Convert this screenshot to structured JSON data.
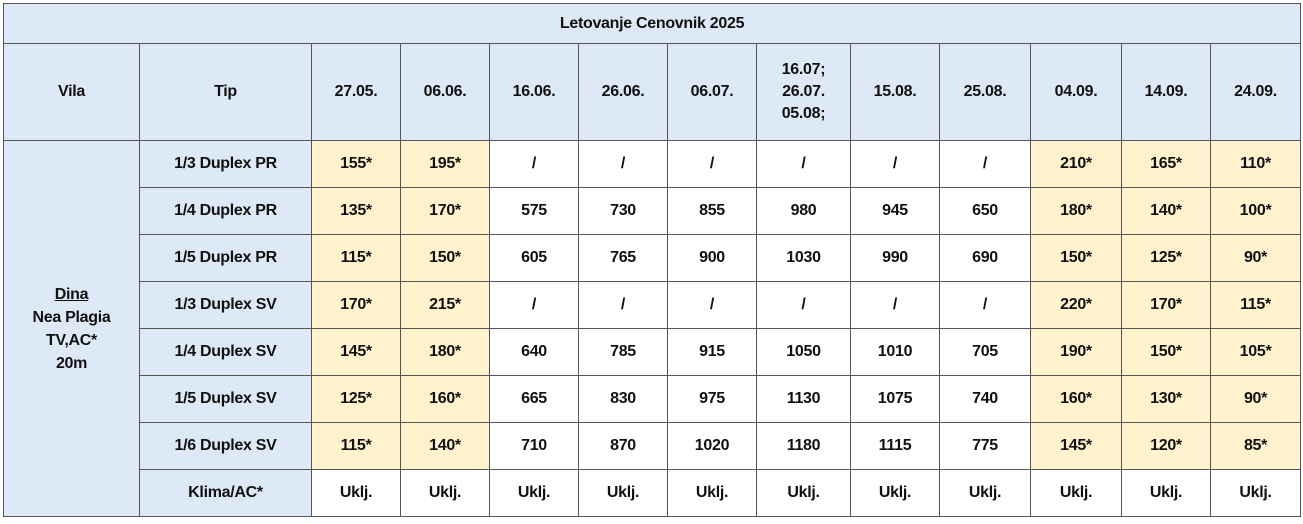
{
  "table": {
    "title": "Letovanje Cenovnik 2025",
    "header": {
      "vila": "Vila",
      "tip": "Tip",
      "dates": [
        "27.05.",
        "06.06.",
        "16.06.",
        "26.06.",
        "06.07.",
        "16.07;\n26.07.\n05.08;",
        "15.08.",
        "25.08.",
        "04.09.",
        "14.09.",
        "24.09."
      ]
    },
    "vila": {
      "name": "Dina",
      "lines": [
        "Nea Plagia",
        "TV,AC*",
        "20m"
      ]
    },
    "rows": [
      {
        "tip": "1/3 Duplex PR",
        "values": [
          "155*",
          "195*",
          "/",
          "/",
          "/",
          "/",
          "/",
          "/",
          "210*",
          "165*",
          "110*"
        ]
      },
      {
        "tip": "1/4 Duplex PR",
        "values": [
          "135*",
          "170*",
          "575",
          "730",
          "855",
          "980",
          "945",
          "650",
          "180*",
          "140*",
          "100*"
        ]
      },
      {
        "tip": "1/5 Duplex PR",
        "values": [
          "115*",
          "150*",
          "605",
          "765",
          "900",
          "1030",
          "990",
          "690",
          "150*",
          "125*",
          "90*"
        ]
      },
      {
        "tip": "1/3 Duplex SV",
        "values": [
          "170*",
          "215*",
          "/",
          "/",
          "/",
          "/",
          "/",
          "/",
          "220*",
          "170*",
          "115*"
        ]
      },
      {
        "tip": "1/4 Duplex SV",
        "values": [
          "145*",
          "180*",
          "640",
          "785",
          "915",
          "1050",
          "1010",
          "705",
          "190*",
          "150*",
          "105*"
        ]
      },
      {
        "tip": "1/5 Duplex SV",
        "values": [
          "125*",
          "160*",
          "665",
          "830",
          "975",
          "1130",
          "1075",
          "740",
          "160*",
          "130*",
          "90*"
        ]
      },
      {
        "tip": "1/6 Duplex SV",
        "values": [
          "115*",
          "140*",
          "710",
          "870",
          "1020",
          "1180",
          "1115",
          "775",
          "145*",
          "120*",
          "85*"
        ]
      },
      {
        "tip": "Klima/AC*",
        "values": [
          "Uklj.",
          "Uklj.",
          "Uklj.",
          "Uklj.",
          "Uklj.",
          "Uklj.",
          "Uklj.",
          "Uklj.",
          "Uklj.",
          "Uklj.",
          "Uklj."
        ]
      }
    ]
  }
}
